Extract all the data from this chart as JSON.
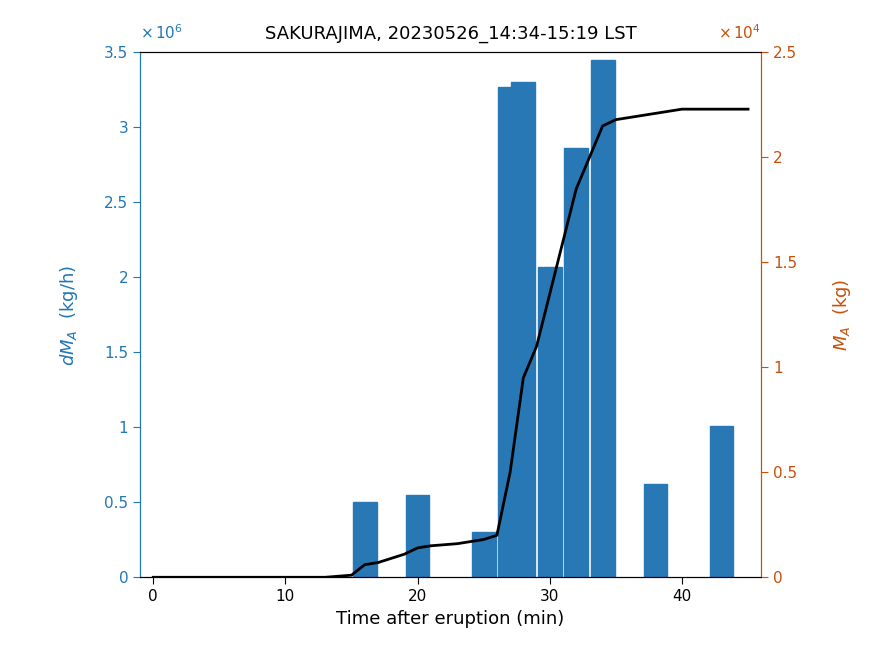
{
  "title": "SAKURAJIMA, 20230526_14:34-15:19 LST",
  "xlabel": "Time after eruption (min)",
  "bar_centers": [
    16,
    20,
    25,
    27,
    28,
    30,
    32,
    34,
    38,
    43
  ],
  "bar_heights": [
    500000,
    550000,
    300000,
    3270000,
    3300000,
    2070000,
    2860000,
    3450000,
    620000,
    1010000
  ],
  "bar_width": 1.8,
  "bar_color": "#2878b5",
  "xlim": [
    -1,
    46
  ],
  "ylim_left": [
    0,
    3500000
  ],
  "ylim_right": [
    0,
    25000
  ],
  "line_x": [
    0,
    13,
    14,
    15,
    16,
    17,
    18,
    19,
    20,
    21,
    22,
    23,
    24,
    25,
    26,
    27,
    28,
    29,
    30,
    31,
    32,
    33,
    34,
    35,
    36,
    37,
    38,
    39,
    40,
    45
  ],
  "line_y": [
    0,
    0,
    50,
    100,
    600,
    700,
    900,
    1100,
    1400,
    1500,
    1550,
    1600,
    1700,
    1800,
    2000,
    5000,
    9500,
    11000,
    13500,
    16000,
    18500,
    20000,
    21500,
    21800,
    21900,
    22000,
    22100,
    22200,
    22300,
    22300
  ],
  "line_color": "#000000",
  "line_width": 2.0,
  "left_color": "#2077b4",
  "right_color": "#c8500a",
  "xticks": [
    0,
    10,
    20,
    30,
    40
  ],
  "yticks_left": [
    0,
    500000,
    1000000,
    1500000,
    2000000,
    2500000,
    3000000,
    3500000
  ],
  "yticks_right": [
    0,
    5000,
    10000,
    15000,
    20000,
    25000
  ],
  "ytick_labels_left": [
    "0",
    "0.5",
    "1",
    "1.5",
    "2",
    "2.5",
    "3",
    "3.5"
  ],
  "ytick_labels_right": [
    "0",
    "0.5",
    "1",
    "1.5",
    "2",
    "2.5"
  ]
}
